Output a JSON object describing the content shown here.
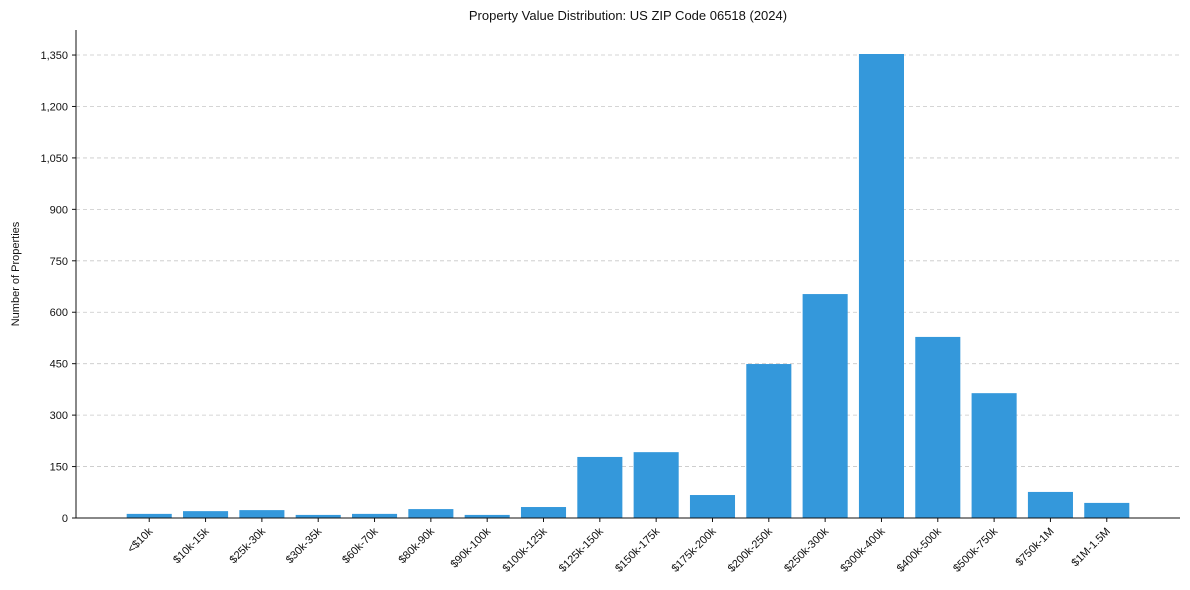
{
  "chart_data": {
    "type": "bar",
    "title": "Property Value Distribution: US ZIP Code 06518 (2024)",
    "xlabel": "",
    "ylabel": "Number of Properties",
    "categories": [
      "<$10k",
      "$10k-15k",
      "$25k-30k",
      "$30k-35k",
      "$60k-70k",
      "$80k-90k",
      "$90k-100k",
      "$100k-125k",
      "$125k-150k",
      "$150k-175k",
      "$175k-200k",
      "$200k-250k",
      "$250k-300k",
      "$300k-400k",
      "$400k-500k",
      "$500k-750k",
      "$750k-1M",
      "$1M-1.5M"
    ],
    "values": [
      12,
      20,
      23,
      9,
      12,
      26,
      9,
      32,
      178,
      192,
      67,
      449,
      653,
      1353,
      528,
      364,
      76,
      44
    ],
    "yticks": [
      0,
      150,
      300,
      450,
      600,
      750,
      900,
      1050,
      1200,
      1350
    ],
    "ytick_labels": [
      "0",
      "150",
      "300",
      "450",
      "600",
      "750",
      "900",
      "1,050",
      "1,200",
      "1,350"
    ],
    "ylim": [
      0,
      1423
    ],
    "grid": "y-dashed",
    "bar_color": "#3498db",
    "legend": "none"
  }
}
